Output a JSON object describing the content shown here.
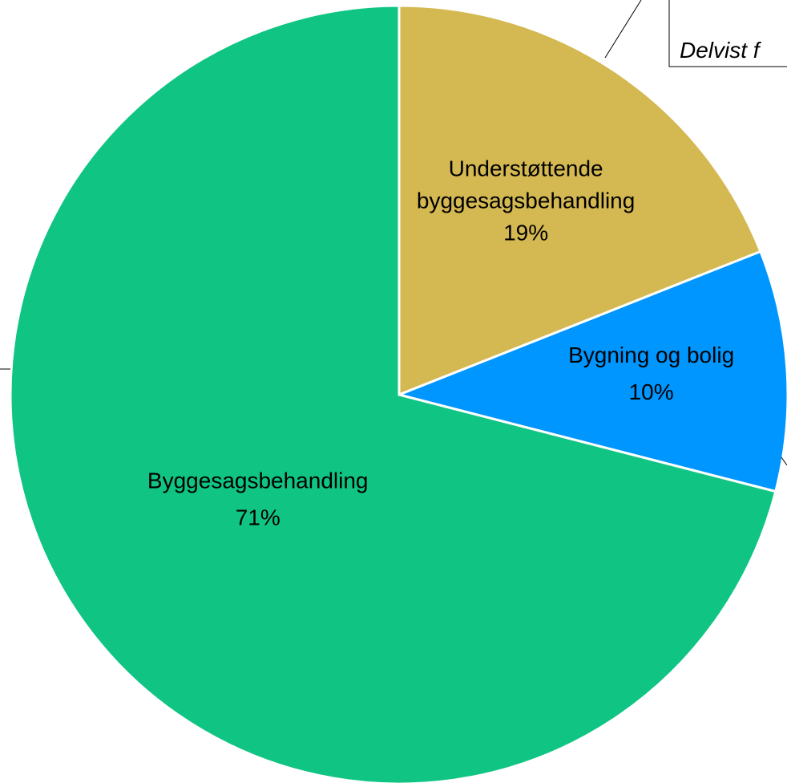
{
  "chart_data": {
    "type": "pie",
    "categories": [
      "Understøttende byggesagsbehandling",
      "Bygning og bolig",
      "Byggesagsbehandling"
    ],
    "values": [
      19,
      10,
      71
    ],
    "value_labels": [
      "19%",
      "10%",
      "71%"
    ],
    "colors": [
      "#d4b852",
      "#0096ff",
      "#10c584"
    ],
    "annotation": "Delvist f"
  }
}
